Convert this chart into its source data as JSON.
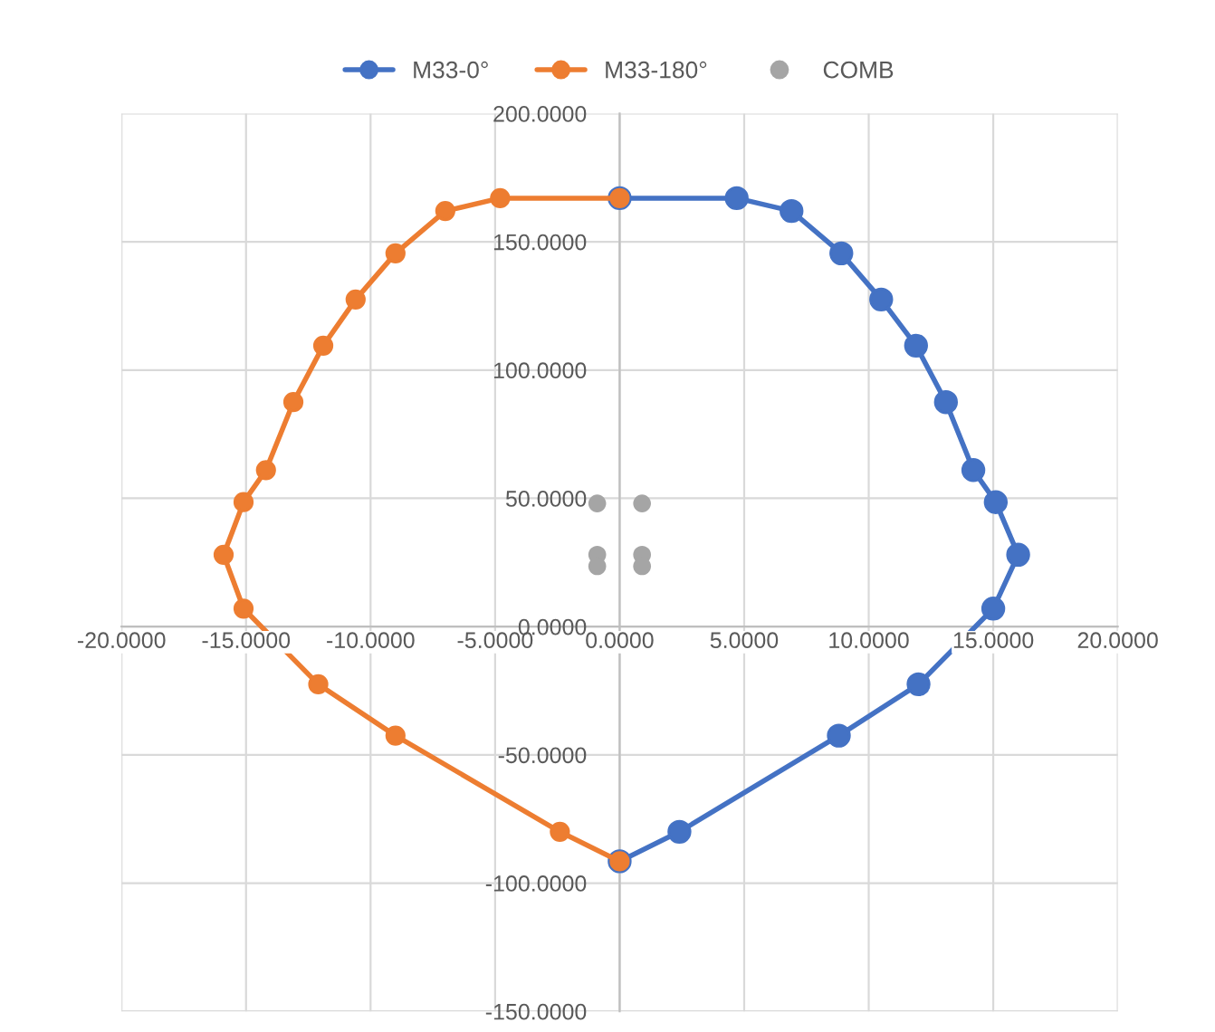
{
  "chart_data": {
    "type": "line",
    "marker": "circle",
    "line_style": "solid",
    "grid": true,
    "legend": "top",
    "xlim": [
      -20,
      20
    ],
    "ylim": [
      -150,
      200
    ],
    "xticks": [
      {
        "value": -20,
        "label": "-20.0000"
      },
      {
        "value": -15,
        "label": "-15.0000"
      },
      {
        "value": -10,
        "label": "-10.0000"
      },
      {
        "value": -5,
        "label": "-5.0000"
      },
      {
        "value": 0,
        "label": "0.0000"
      },
      {
        "value": 5,
        "label": "5.0000"
      },
      {
        "value": 10,
        "label": "10.0000"
      },
      {
        "value": 15,
        "label": "15.0000"
      },
      {
        "value": 20,
        "label": "20.0000"
      }
    ],
    "yticks": [
      {
        "value": -150,
        "label": "-150.0000"
      },
      {
        "value": -100,
        "label": "-100.0000"
      },
      {
        "value": -50,
        "label": "-50.0000"
      },
      {
        "value": 0,
        "label": "0.0000"
      },
      {
        "value": 50,
        "label": "50.0000"
      },
      {
        "value": 100,
        "label": "100.0000"
      },
      {
        "value": 150,
        "label": "150.0000"
      },
      {
        "value": 200,
        "label": "200.0000"
      }
    ],
    "series": [
      {
        "name": "M33-0°",
        "color": "#4472c4",
        "x": [
          0,
          4.7,
          6.9,
          8.9,
          10.5,
          11.9,
          13.1,
          14.2,
          15.1,
          16.0,
          15.0,
          12.0,
          8.8,
          2.4,
          0
        ],
        "values": [
          167,
          167,
          162,
          145.5,
          127.5,
          109.5,
          87.5,
          61,
          48.5,
          28,
          7,
          -22.5,
          -42.5,
          -80,
          -91.5
        ]
      },
      {
        "name": "M33-180°",
        "color": "#ed7d31",
        "x": [
          0,
          -4.8,
          -7.0,
          -9.0,
          -10.6,
          -11.9,
          -13.1,
          -14.2,
          -15.1,
          -15.9,
          -15.1,
          -12.1,
          -9.0,
          -2.4,
          0
        ],
        "values": [
          167,
          167,
          162,
          145.5,
          127.5,
          109.5,
          87.5,
          61,
          48.5,
          28,
          7,
          -22.5,
          -42.5,
          -80,
          -91.5
        ]
      },
      {
        "name": "COMB",
        "type": "scatter",
        "color": "#a5a5a5",
        "x": [
          -0.9,
          -0.9,
          -0.9,
          0.9,
          0.9,
          0.9
        ],
        "values": [
          48,
          28,
          23.5,
          48,
          28,
          23.5
        ]
      }
    ]
  }
}
